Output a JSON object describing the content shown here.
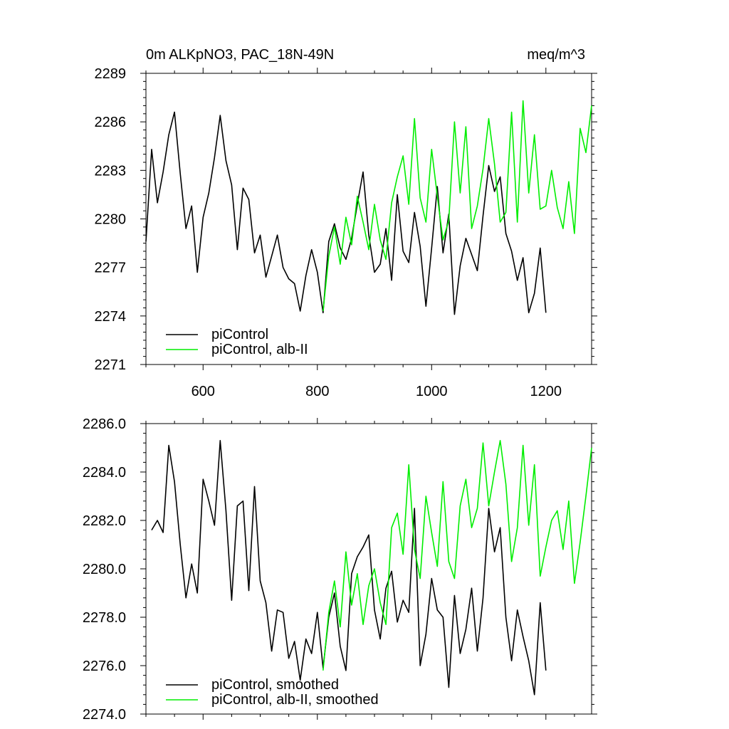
{
  "chart_data": [
    {
      "type": "line",
      "title_left": "0m ALKpNO3, PAC_18N-49N",
      "title_right": "meq/m^3",
      "xlim": [
        500,
        1280
      ],
      "ylim": [
        2271,
        2289
      ],
      "xticks": [
        600,
        800,
        1000,
        1200
      ],
      "xtick_labels": [
        "600",
        "800",
        "1000",
        "1200"
      ],
      "yticks": [
        2271,
        2274,
        2277,
        2280,
        2283,
        2286,
        2289
      ],
      "ytick_labels": [
        "2271",
        "2274",
        "2277",
        "2280",
        "2283",
        "2286",
        "2289"
      ],
      "legend_position": "bottom-left",
      "series": [
        {
          "name": "piControl",
          "color": "#000000",
          "x": [
            500,
            510,
            520,
            530,
            540,
            550,
            560,
            570,
            580,
            590,
            600,
            610,
            620,
            630,
            640,
            650,
            660,
            670,
            680,
            690,
            700,
            710,
            720,
            730,
            740,
            750,
            760,
            770,
            780,
            790,
            800,
            810,
            820,
            830,
            840,
            850,
            860,
            870,
            880,
            890,
            900,
            910,
            920,
            930,
            940,
            950,
            960,
            970,
            980,
            990,
            1000,
            1010,
            1020,
            1030,
            1040,
            1050,
            1060,
            1070,
            1080,
            1090,
            1100,
            1110,
            1120,
            1130,
            1140,
            1150,
            1160,
            1170,
            1180,
            1190,
            1200
          ],
          "values": [
            2278.6,
            2284.3,
            2281.0,
            2282.9,
            2285.2,
            2286.6,
            2282.8,
            2279.4,
            2280.8,
            2276.7,
            2280.1,
            2281.6,
            2283.8,
            2286.4,
            2283.6,
            2282.1,
            2278.1,
            2281.9,
            2281.2,
            2277.9,
            2279.0,
            2276.4,
            2277.7,
            2279.0,
            2277.0,
            2276.3,
            2276.0,
            2274.3,
            2276.5,
            2278.1,
            2276.7,
            2274.2,
            2278.6,
            2279.7,
            2278.2,
            2277.5,
            2278.8,
            2280.9,
            2282.9,
            2279.0,
            2276.7,
            2277.2,
            2279.4,
            2276.2,
            2281.5,
            2278.0,
            2277.3,
            2280.4,
            2278.3,
            2274.6,
            2278.2,
            2282.0,
            2277.9,
            2280.3,
            2274.1,
            2277.1,
            2278.8,
            2277.8,
            2276.8,
            2280.2,
            2283.3,
            2281.7,
            2282.6,
            2279.1,
            2278.0,
            2276.2,
            2277.6,
            2274.2,
            2275.4,
            2278.2,
            2274.2
          ]
        },
        {
          "name": "piControl, alb-II",
          "color": "#00ee00",
          "x": [
            810,
            820,
            830,
            840,
            850,
            860,
            870,
            880,
            890,
            900,
            910,
            920,
            930,
            940,
            950,
            960,
            970,
            980,
            990,
            1000,
            1010,
            1020,
            1030,
            1040,
            1050,
            1060,
            1070,
            1080,
            1090,
            1100,
            1110,
            1120,
            1130,
            1140,
            1150,
            1160,
            1170,
            1180,
            1190,
            1200,
            1210,
            1220,
            1230,
            1240,
            1250,
            1260,
            1270,
            1280
          ],
          "values": [
            2274.3,
            2277.7,
            2279.5,
            2277.2,
            2280.1,
            2278.4,
            2281.4,
            2279.8,
            2278.1,
            2280.9,
            2278.7,
            2277.5,
            2281.0,
            2282.6,
            2283.9,
            2280.9,
            2286.2,
            2281.3,
            2279.8,
            2284.3,
            2281.4,
            2278.7,
            2279.9,
            2286.0,
            2281.6,
            2285.7,
            2279.4,
            2280.8,
            2283.1,
            2286.2,
            2283.4,
            2279.8,
            2280.4,
            2286.6,
            2279.8,
            2287.3,
            2281.6,
            2285.2,
            2280.6,
            2280.8,
            2283.0,
            2280.7,
            2279.4,
            2282.3,
            2279.1,
            2285.6,
            2284.1,
            2287.0
          ]
        }
      ]
    },
    {
      "type": "line",
      "xlim": [
        500,
        1280
      ],
      "ylim": [
        2274.0,
        2286.0
      ],
      "xticks": [
        600,
        800,
        1000,
        1200
      ],
      "yticks": [
        2274.0,
        2276.0,
        2278.0,
        2280.0,
        2282.0,
        2284.0,
        2286.0
      ],
      "ytick_labels": [
        "2274.0",
        "2276.0",
        "2278.0",
        "2280.0",
        "2282.0",
        "2284.0",
        "2286.0"
      ],
      "legend_position": "bottom-left",
      "series": [
        {
          "name": "piControl, smoothed",
          "color": "#000000",
          "x": [
            510,
            520,
            530,
            540,
            550,
            560,
            570,
            580,
            590,
            600,
            610,
            620,
            630,
            640,
            650,
            660,
            670,
            680,
            690,
            700,
            710,
            720,
            730,
            740,
            750,
            760,
            770,
            780,
            790,
            800,
            810,
            820,
            830,
            840,
            850,
            860,
            870,
            880,
            890,
            900,
            910,
            920,
            930,
            940,
            950,
            960,
            970,
            980,
            990,
            1000,
            1010,
            1020,
            1030,
            1040,
            1050,
            1060,
            1070,
            1080,
            1090,
            1100,
            1110,
            1120,
            1130,
            1140,
            1150,
            1160,
            1170,
            1180,
            1190,
            1200
          ],
          "values": [
            2281.6,
            2282.0,
            2281.5,
            2285.1,
            2283.6,
            2281.0,
            2278.8,
            2280.2,
            2279.0,
            2283.7,
            2282.8,
            2281.8,
            2285.3,
            2282.4,
            2278.7,
            2282.6,
            2282.8,
            2279.1,
            2283.4,
            2279.5,
            2278.6,
            2276.6,
            2278.3,
            2278.2,
            2276.3,
            2277.0,
            2275.4,
            2277.1,
            2276.5,
            2278.2,
            2275.9,
            2278.0,
            2279.0,
            2276.8,
            2275.8,
            2279.8,
            2280.5,
            2280.9,
            2281.4,
            2278.3,
            2277.1,
            2279.2,
            2279.9,
            2277.8,
            2278.7,
            2278.2,
            2282.5,
            2276.0,
            2277.3,
            2279.6,
            2278.3,
            2278.0,
            2275.1,
            2278.9,
            2276.5,
            2277.5,
            2279.2,
            2276.6,
            2278.8,
            2282.5,
            2280.7,
            2281.7,
            2278.0,
            2276.2,
            2278.3,
            2277.2,
            2276.2,
            2274.8,
            2278.6,
            2275.8
          ]
        },
        {
          "name": "piControl, alb-II, smoothed",
          "color": "#00ee00",
          "x": [
            810,
            820,
            830,
            840,
            850,
            860,
            870,
            880,
            890,
            900,
            910,
            920,
            930,
            940,
            950,
            960,
            970,
            980,
            990,
            1000,
            1010,
            1020,
            1030,
            1040,
            1050,
            1060,
            1070,
            1080,
            1090,
            1100,
            1110,
            1120,
            1130,
            1140,
            1150,
            1160,
            1170,
            1180,
            1190,
            1200,
            1210,
            1220,
            1230,
            1240,
            1250,
            1260,
            1270,
            1280
          ],
          "values": [
            2275.8,
            2278.2,
            2279.5,
            2277.6,
            2280.7,
            2278.5,
            2279.8,
            2277.7,
            2279.3,
            2280.0,
            2278.6,
            2277.7,
            2281.7,
            2282.3,
            2280.6,
            2284.3,
            2280.8,
            2279.6,
            2283.0,
            2281.5,
            2280.1,
            2283.6,
            2280.3,
            2279.6,
            2282.6,
            2283.7,
            2281.7,
            2282.5,
            2285.2,
            2282.6,
            2284.0,
            2285.3,
            2283.5,
            2280.3,
            2281.7,
            2285.1,
            2281.8,
            2284.3,
            2279.7,
            2280.9,
            2282.0,
            2282.4,
            2280.8,
            2282.8,
            2279.4,
            2281.1,
            2283.0,
            2285.0
          ]
        }
      ]
    }
  ]
}
